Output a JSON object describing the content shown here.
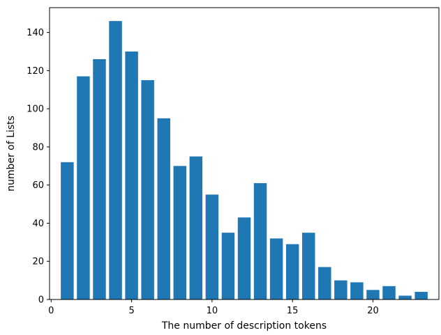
{
  "chart_data": {
    "type": "bar",
    "title": "",
    "xlabel": "The number of description tokens",
    "ylabel": "number of Lists",
    "x": [
      1,
      2,
      3,
      4,
      5,
      6,
      7,
      8,
      9,
      10,
      11,
      12,
      13,
      14,
      15,
      16,
      17,
      18,
      19,
      20,
      21,
      22,
      23
    ],
    "values": [
      72,
      117,
      126,
      146,
      130,
      115,
      95,
      70,
      75,
      55,
      35,
      43,
      61,
      32,
      29,
      35,
      17,
      10,
      9,
      5,
      7,
      2,
      4
    ],
    "xlim": [
      -0.1,
      24.1
    ],
    "ylim": [
      0,
      153
    ],
    "xticks": [
      0,
      5,
      10,
      15,
      20
    ],
    "yticks": [
      0,
      20,
      40,
      60,
      80,
      100,
      120,
      140
    ],
    "bar_width": 0.8,
    "bar_color": "#1f77b4",
    "grid": false,
    "legend": "none"
  }
}
